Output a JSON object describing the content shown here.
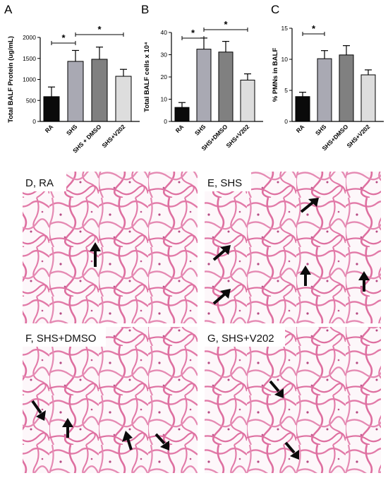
{
  "chart_data": [
    {
      "type": "bar",
      "panel": "A",
      "ylabel": "Total BALF Protein (ug/mL)",
      "categories": [
        "RA",
        "SHS",
        "SHS + DMSO",
        "SHS+V202"
      ],
      "values": [
        590,
        1430,
        1480,
        1075
      ],
      "errors": [
        230,
        260,
        290,
        165
      ],
      "yticks": [
        0,
        500,
        1000,
        1500,
        2000
      ],
      "ylim": [
        0,
        2000
      ],
      "colors": [
        "#0a0a0a",
        "#a9a9b3",
        "#808080",
        "#dddddd"
      ],
      "significance": [
        {
          "from": 0,
          "to": 1,
          "label": "*"
        },
        {
          "from": 1,
          "to": 3,
          "label": "*"
        }
      ]
    },
    {
      "type": "bar",
      "panel": "B",
      "ylabel": "Total BALF cells x 10⁴",
      "categories": [
        "RA",
        "SHS",
        "SHS+DMSO",
        "SHS+V202"
      ],
      "values": [
        6.3,
        32.5,
        31.2,
        18.6
      ],
      "errors": [
        2.2,
        5.0,
        4.8,
        2.8
      ],
      "yticks": [
        0,
        10,
        20,
        30,
        40
      ],
      "ylim": [
        0,
        40
      ],
      "colors": [
        "#0a0a0a",
        "#a9a9b3",
        "#808080",
        "#dddddd"
      ],
      "significance": [
        {
          "from": 0,
          "to": 1,
          "label": "*"
        },
        {
          "from": 1,
          "to": 3,
          "label": "*"
        }
      ]
    },
    {
      "type": "bar",
      "panel": "C",
      "ylabel": "% PMNs in BALF",
      "categories": [
        "RA",
        "SHS",
        "SHS+DMSO",
        "SHS+V202"
      ],
      "values": [
        4.0,
        10.1,
        10.7,
        7.5
      ],
      "errors": [
        0.7,
        1.3,
        1.5,
        0.8
      ],
      "yticks": [
        0,
        5,
        10,
        15
      ],
      "ylim": [
        0,
        15
      ],
      "colors": [
        "#0a0a0a",
        "#a9a9b3",
        "#808080",
        "#dddddd"
      ],
      "significance": [
        {
          "from": 0,
          "to": 1,
          "label": "*"
        }
      ]
    }
  ],
  "micrographs": [
    {
      "label": "D, RA",
      "arrows": 1
    },
    {
      "label": "E, SHS",
      "arrows": 5
    },
    {
      "label": "F, SHS+DMSO",
      "arrows": 4
    },
    {
      "label": "G, SHS+V202",
      "arrows": 2
    }
  ],
  "colors": {
    "tissue": "#e27aa8",
    "tissue_light": "#f3c6da",
    "background_micro": "#fbf6f8",
    "arrow": "#0b0b0b"
  }
}
